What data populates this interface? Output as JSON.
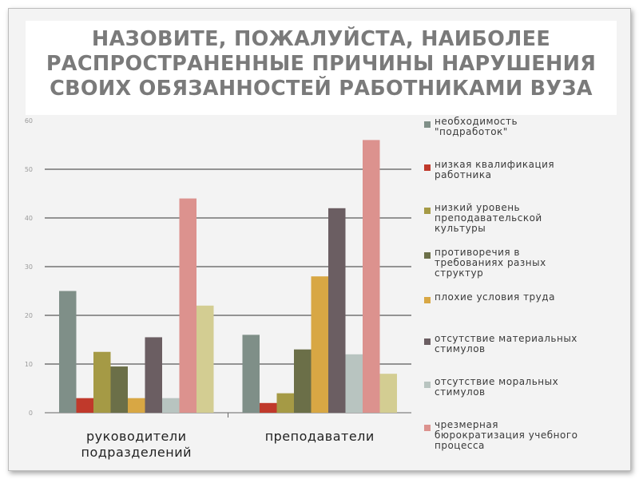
{
  "title_lines": [
    "НАЗОВИТЕ, ПОЖАЛУЙСТА, НАИБОЛЕЕ",
    "РАСПРОСТРАНЕННЫЕ ПРИЧИНЫ НАРУШЕНИЯ",
    "СВОИХ ОБЯЗАННОСТЕЙ РАБОТНИКАМИ ВУЗА"
  ],
  "chart_data": {
    "type": "bar",
    "categories": [
      "руководители\nподразделений",
      "преподаватели"
    ],
    "y_ticks": [
      "0",
      "10",
      "20",
      "30",
      "40",
      "50",
      "60"
    ],
    "ylim": [
      0,
      60
    ],
    "grid": true,
    "legend_position": "right",
    "series": [
      {
        "name": "необходимость\n\"подработок\"",
        "color": "#7f8f88",
        "values": [
          25,
          16
        ]
      },
      {
        "name": "низкая квалификация\nработника",
        "color": "#c0392b",
        "values": [
          3,
          2
        ]
      },
      {
        "name": "низкий уровень\nпреподавательской\nкультуры",
        "color": "#a59a45",
        "values": [
          12.5,
          4
        ]
      },
      {
        "name": "противоречия в\nтребованиях разных\nструктур",
        "color": "#6b6f48",
        "values": [
          9.5,
          13
        ]
      },
      {
        "name": "плохие условия труда",
        "color": "#d8a744",
        "values": [
          3,
          28
        ]
      },
      {
        "name": "отсутствие материальных\nстимулов",
        "color": "#6b5e62",
        "values": [
          15.5,
          42
        ]
      },
      {
        "name": "отсутствие моральных\nстимулов",
        "color": "#b8c4c0",
        "values": [
          3,
          12
        ]
      },
      {
        "name": "чрезмерная\nбюрократизация учебного\nпроцесса",
        "color": "#dc928e",
        "values": [
          44,
          56
        ]
      },
      {
        "name": "",
        "color": "#d3cd92",
        "values": [
          22,
          8
        ]
      }
    ]
  }
}
